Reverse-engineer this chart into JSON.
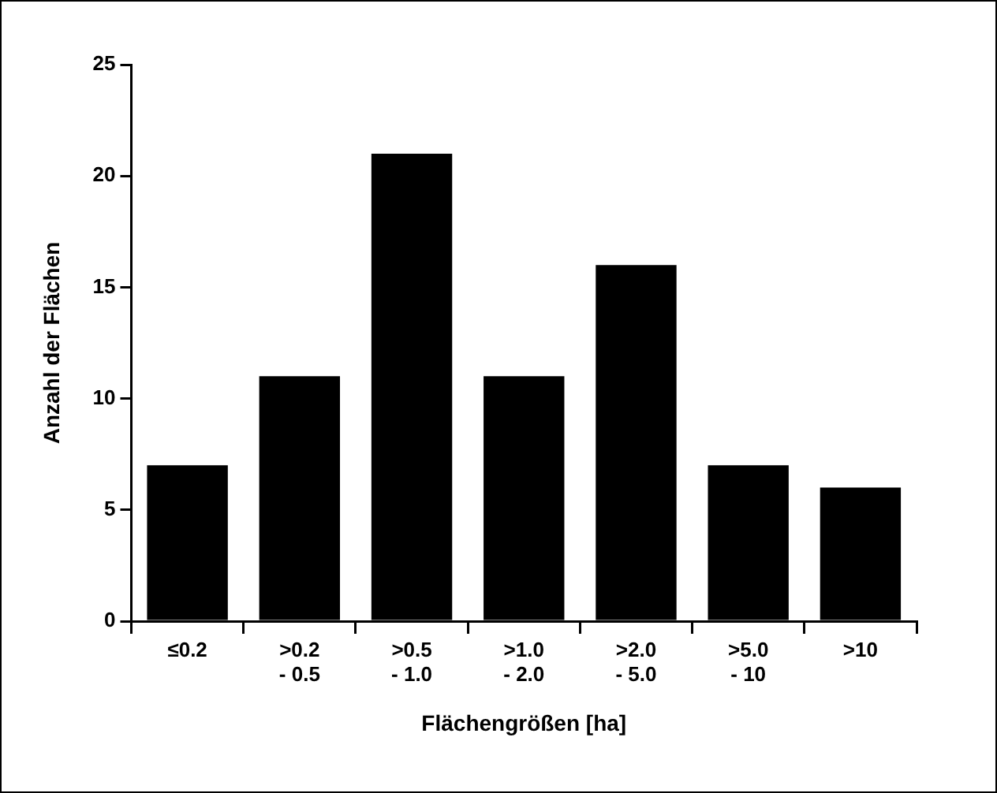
{
  "chart_data": {
    "type": "bar",
    "xlabel": "Flächengrößen [ha]",
    "ylabel": "Anzahl der Flächen",
    "categories": [
      "≤0.2",
      ">0.2\n- 0.5",
      ">0.5\n- 1.0",
      ">1.0\n- 2.0",
      ">2.0\n- 5.0",
      ">5.0\n- 10",
      ">10"
    ],
    "values": [
      7,
      11,
      21,
      11,
      16,
      7,
      6
    ],
    "color": "#000000",
    "ylim": [
      0,
      25
    ],
    "yticks": [
      0,
      5,
      10,
      15,
      20,
      25
    ],
    "grid": false,
    "legend": false
  }
}
